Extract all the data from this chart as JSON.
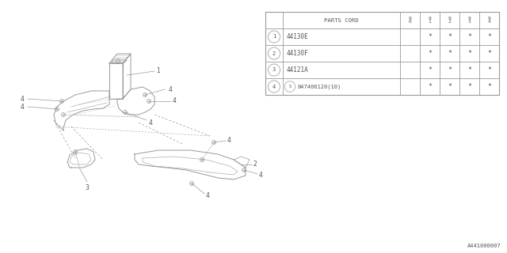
{
  "bg_color": "#ffffff",
  "parts_cord_header": "PARTS CORD",
  "year_cols": [
    "9\n0",
    "9\n1",
    "9\n2",
    "9\n3",
    "9\n4"
  ],
  "rows": [
    {
      "num": "1",
      "code": "44130E",
      "vals": [
        "",
        "*",
        "*",
        "*",
        "*"
      ]
    },
    {
      "num": "2",
      "code": "44130F",
      "vals": [
        "",
        "*",
        "*",
        "*",
        "*"
      ]
    },
    {
      "num": "3",
      "code": "44121A",
      "vals": [
        "",
        "*",
        "*",
        "*",
        "*"
      ]
    },
    {
      "num": "4",
      "code": "047406120(10)",
      "vals": [
        "",
        "*",
        "*",
        "*",
        "*"
      ]
    }
  ],
  "watermark": "A441000007",
  "lc": "#999999",
  "tc": "#555555"
}
